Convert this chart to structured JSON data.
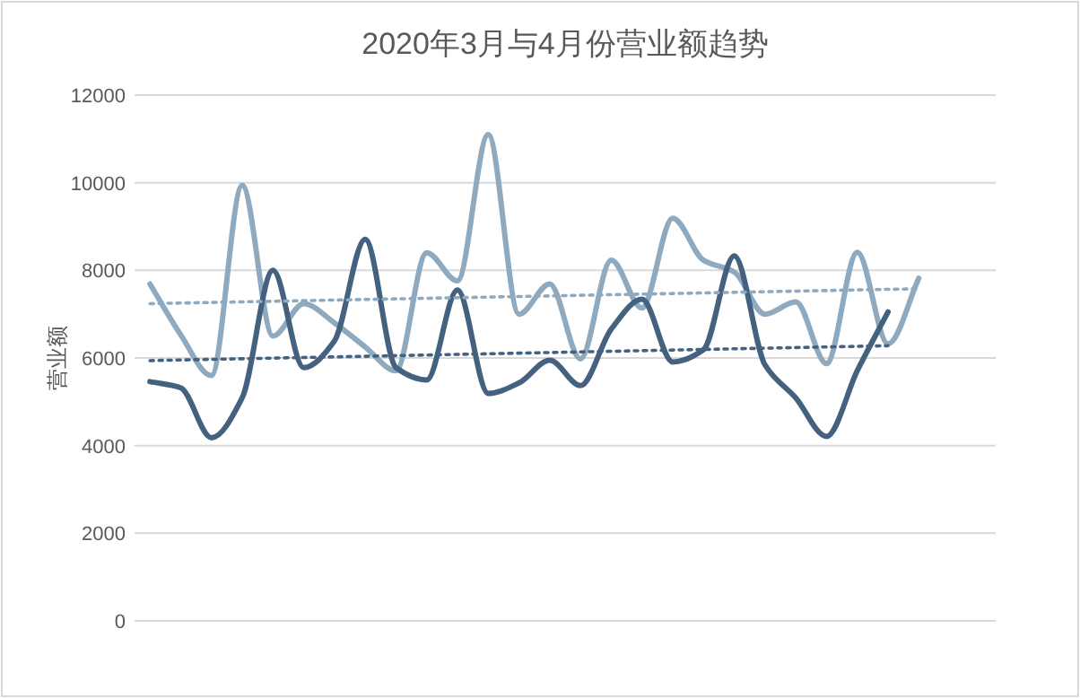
{
  "chart_data": {
    "type": "line",
    "title": "2020年3月与4月份营业额趋势",
    "ylabel": "营业额",
    "categories": [
      null,
      null,
      null,
      null,
      null,
      null,
      null,
      null,
      null,
      null,
      null,
      null,
      null,
      null,
      null,
      null,
      null,
      null,
      null,
      null,
      null,
      null,
      null,
      null,
      null,
      null
    ],
    "ylim": [
      0,
      12000
    ],
    "yticks": [
      0,
      2000,
      4000,
      6000,
      8000,
      10000,
      12000
    ],
    "grid": "y",
    "tick_labels": "y",
    "series": [
      {
        "color": "#8fa9bf",
        "line_style": "solid",
        "values": [
          7690,
          6530,
          5600,
          9940,
          6500,
          7240,
          6800,
          6250,
          5710,
          8400,
          7760,
          11100,
          7000,
          7690,
          5980,
          8230,
          7140,
          9190,
          8230,
          7960,
          7000,
          7280,
          5870,
          8410,
          6320,
          7820
        ]
      },
      {
        "color": "#44627f",
        "line_style": "solid",
        "values": [
          5460,
          5320,
          4180,
          5090,
          8000,
          5780,
          6390,
          8710,
          5780,
          5500,
          7550,
          5190,
          5430,
          5950,
          5370,
          6660,
          7340,
          5910,
          6190,
          8330,
          5840,
          5090,
          4210,
          5710,
          7050,
          null
        ]
      },
      {
        "color": "#8fa9bf",
        "line_style": "dotted",
        "values": [
          7240,
          null,
          null,
          null,
          null,
          null,
          null,
          null,
          null,
          null,
          null,
          null,
          null,
          null,
          null,
          null,
          null,
          null,
          null,
          null,
          null,
          null,
          null,
          null,
          null,
          7580
        ]
      },
      {
        "color": "#44627f",
        "line_style": "dotted",
        "values": [
          5940,
          null,
          null,
          null,
          null,
          null,
          null,
          null,
          null,
          null,
          null,
          null,
          null,
          null,
          null,
          null,
          null,
          null,
          null,
          null,
          null,
          null,
          null,
          null,
          6280,
          null
        ]
      }
    ]
  }
}
